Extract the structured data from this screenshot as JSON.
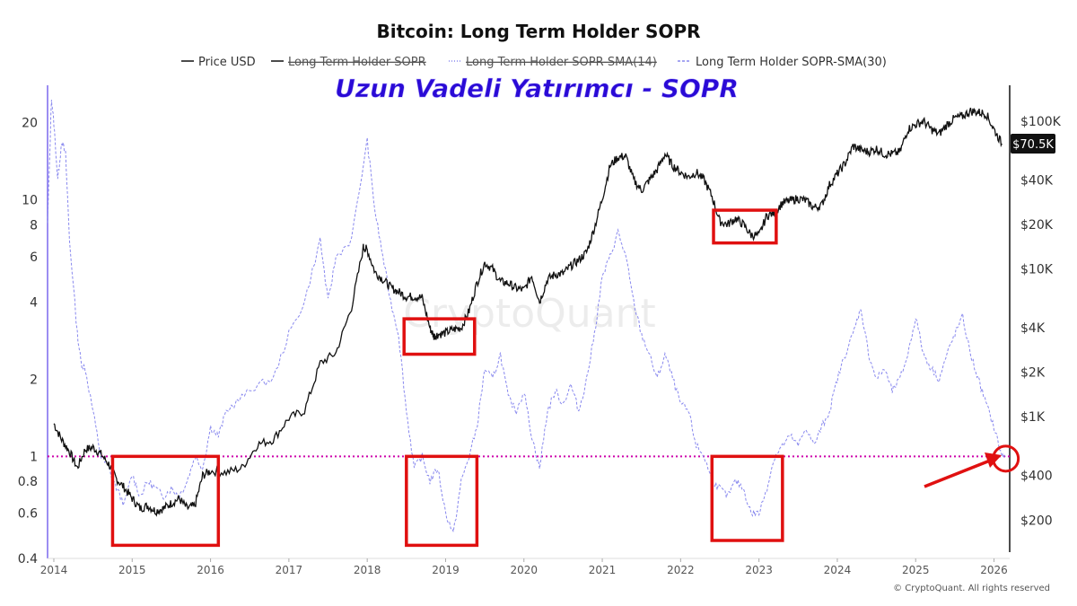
{
  "chart_data": {
    "type": "line",
    "title": "Bitcoin: Long Term Holder SOPR",
    "annotation": "Uzun Vadeli Yatırımcı - SOPR",
    "watermark": "CryptoQuant",
    "copyright": "© CryptoQuant. All rights reserved",
    "legend": [
      {
        "label": "Price USD",
        "style": "solid",
        "hidden": false
      },
      {
        "label": "Long Term Holder SOPR",
        "style": "solid",
        "hidden": true
      },
      {
        "label": "Long Term Holder SOPR-SMA(14)",
        "style": "dotted",
        "hidden": true
      },
      {
        "label": "Long Term Holder SOPR-SMA(30)",
        "style": "dashed",
        "hidden": false
      }
    ],
    "x_ticks": [
      "2014",
      "2015",
      "2016",
      "2017",
      "2018",
      "2019",
      "2020",
      "2021",
      "2022",
      "2023",
      "2024",
      "2025",
      "2026"
    ],
    "x_range": [
      2013.92,
      2026.2
    ],
    "left_axis": {
      "scale": "log",
      "range": [
        0.4,
        28
      ],
      "ticks": [
        0.4,
        0.6,
        0.8,
        1,
        2,
        4,
        6,
        8,
        10,
        20
      ],
      "labels": [
        "0.4",
        "0.6",
        "0.8",
        "1",
        "2",
        "4",
        "6",
        "8",
        "10",
        "20"
      ]
    },
    "right_axis": {
      "scale": "log",
      "range": [
        110,
        175000
      ],
      "ticks": [
        200,
        400,
        1000,
        2000,
        4000,
        10000,
        20000,
        40000,
        100000
      ],
      "labels": [
        "$200",
        "$400",
        "$1K",
        "$2K",
        "$4K",
        "$10K",
        "$20K",
        "$40K",
        "$100K"
      ]
    },
    "current_price_label": "$70.5K",
    "current_price": 70500,
    "reference_line": 1,
    "colors": {
      "price": "#111111",
      "sopr_sma30": "#8888ee",
      "reference": "#cc00aa",
      "highlight": "#e01010",
      "annotation": "#2a0ad6",
      "axis_left": "#7b68ee",
      "price_tag_bg": "#111111"
    },
    "series": [
      {
        "name": "Price USD",
        "axis": "right",
        "x": [
          2014.0,
          2014.1,
          2014.2,
          2014.3,
          2014.4,
          2014.5,
          2014.6,
          2014.7,
          2014.8,
          2014.9,
          2015.0,
          2015.1,
          2015.2,
          2015.3,
          2015.4,
          2015.5,
          2015.6,
          2015.7,
          2015.8,
          2015.9,
          2016.0,
          2016.2,
          2016.4,
          2016.6,
          2016.8,
          2017.0,
          2017.2,
          2017.4,
          2017.6,
          2017.8,
          2017.95,
          2018.0,
          2018.1,
          2018.2,
          2018.3,
          2018.4,
          2018.5,
          2018.6,
          2018.7,
          2018.8,
          2018.85,
          2018.9,
          2019.0,
          2019.1,
          2019.2,
          2019.3,
          2019.4,
          2019.5,
          2019.6,
          2019.7,
          2019.8,
          2019.9,
          2020.0,
          2020.1,
          2020.2,
          2020.3,
          2020.4,
          2020.5,
          2020.6,
          2020.7,
          2020.8,
          2020.9,
          2021.0,
          2021.1,
          2021.2,
          2021.3,
          2021.4,
          2021.5,
          2021.6,
          2021.7,
          2021.8,
          2021.9,
          2022.0,
          2022.1,
          2022.2,
          2022.3,
          2022.4,
          2022.5,
          2022.6,
          2022.7,
          2022.8,
          2022.9,
          2023.0,
          2023.1,
          2023.2,
          2023.3,
          2023.4,
          2023.5,
          2023.6,
          2023.7,
          2023.8,
          2023.9,
          2024.0,
          2024.1,
          2024.2,
          2024.3,
          2024.4,
          2024.5,
          2024.6,
          2024.7,
          2024.8,
          2024.9,
          2025.0,
          2025.1,
          2025.2,
          2025.3,
          2025.4,
          2025.5,
          2025.6,
          2025.7,
          2025.8,
          2025.9,
          2026.0,
          2026.1
        ],
        "values": [
          900,
          700,
          580,
          450,
          600,
          620,
          560,
          480,
          380,
          330,
          280,
          240,
          250,
          230,
          240,
          260,
          280,
          240,
          250,
          400,
          430,
          420,
          450,
          650,
          700,
          980,
          1100,
          2300,
          2700,
          5500,
          14000,
          13500,
          9500,
          8500,
          7500,
          7000,
          6500,
          6500,
          6400,
          4000,
          3500,
          3600,
          3700,
          3900,
          4000,
          5200,
          8000,
          11000,
          10000,
          8200,
          8000,
          7400,
          7200,
          9000,
          6000,
          8500,
          9200,
          9300,
          10500,
          11500,
          13000,
          19000,
          30000,
          50000,
          57000,
          58000,
          40000,
          34000,
          40000,
          47000,
          60000,
          50000,
          45000,
          42000,
          45000,
          40000,
          31000,
          21000,
          20000,
          22000,
          20000,
          17000,
          16800,
          23000,
          24000,
          28000,
          29000,
          30000,
          29000,
          26000,
          27000,
          37000,
          44000,
          52000,
          68000,
          64000,
          62000,
          65000,
          60000,
          60000,
          62000,
          88000,
          95000,
          100000,
          88000,
          82000,
          95000,
          105000,
          108000,
          117000,
          115000,
          112000,
          88000,
          70500
        ]
      },
      {
        "name": "Long Term Holder SOPR-SMA(30)",
        "axis": "left",
        "x": [
          2013.92,
          2013.97,
          2014.0,
          2014.05,
          2014.1,
          2014.15,
          2014.2,
          2014.3,
          2014.35,
          2014.4,
          2014.5,
          2014.6,
          2014.7,
          2014.8,
          2014.9,
          2015.0,
          2015.1,
          2015.2,
          2015.3,
          2015.4,
          2015.5,
          2015.6,
          2015.7,
          2015.8,
          2015.9,
          2016.0,
          2016.1,
          2016.2,
          2016.4,
          2016.6,
          2016.8,
          2017.0,
          2017.2,
          2017.4,
          2017.5,
          2017.6,
          2017.8,
          2018.0,
          2018.1,
          2018.2,
          2018.3,
          2018.4,
          2018.5,
          2018.6,
          2018.7,
          2018.8,
          2018.9,
          2019.0,
          2019.1,
          2019.2,
          2019.3,
          2019.4,
          2019.5,
          2019.6,
          2019.7,
          2019.8,
          2019.9,
          2020.0,
          2020.1,
          2020.2,
          2020.3,
          2020.4,
          2020.5,
          2020.6,
          2020.7,
          2020.8,
          2020.9,
          2021.0,
          2021.1,
          2021.2,
          2021.3,
          2021.4,
          2021.5,
          2021.6,
          2021.7,
          2021.8,
          2021.9,
          2022.0,
          2022.1,
          2022.2,
          2022.3,
          2022.4,
          2022.5,
          2022.6,
          2022.7,
          2022.8,
          2022.9,
          2023.0,
          2023.1,
          2023.2,
          2023.3,
          2023.4,
          2023.5,
          2023.6,
          2023.7,
          2023.8,
          2023.9,
          2024.0,
          2024.1,
          2024.2,
          2024.3,
          2024.4,
          2024.5,
          2024.6,
          2024.7,
          2024.8,
          2024.9,
          2025.0,
          2025.1,
          2025.2,
          2025.3,
          2025.4,
          2025.5,
          2025.6,
          2025.7,
          2025.8,
          2025.9,
          2026.0,
          2026.1,
          2026.15
        ],
        "values": [
          8,
          25,
          20,
          12,
          17,
          15,
          7,
          3,
          2.3,
          2.2,
          1.5,
          1.0,
          0.9,
          0.75,
          0.65,
          0.85,
          0.7,
          0.8,
          0.75,
          0.7,
          0.75,
          0.7,
          0.8,
          1.0,
          0.9,
          1.3,
          1.2,
          1.5,
          1.7,
          1.9,
          2.0,
          3,
          4,
          7,
          4,
          6,
          7,
          17,
          9,
          6,
          4,
          3,
          1.5,
          0.9,
          1.0,
          0.8,
          0.9,
          0.6,
          0.5,
          0.8,
          1.0,
          1.3,
          2.2,
          2.0,
          2.5,
          1.7,
          1.5,
          1.8,
          1.2,
          0.9,
          1.5,
          1.8,
          1.6,
          1.9,
          1.5,
          2.0,
          3,
          5,
          6,
          7.5,
          6,
          4,
          3,
          2.5,
          2.0,
          2.5,
          2.0,
          1.6,
          1.5,
          1.1,
          1.0,
          0.8,
          0.75,
          0.7,
          0.8,
          0.75,
          0.6,
          0.6,
          0.75,
          1.0,
          1.1,
          1.2,
          1.1,
          1.3,
          1.1,
          1.3,
          1.5,
          2,
          2.5,
          3,
          3.8,
          2.5,
          2.0,
          2.2,
          1.8,
          2,
          2.5,
          3.5,
          2.5,
          2.2,
          2.0,
          2.5,
          3.0,
          3.5,
          2.5,
          2.0,
          1.6,
          1.3,
          1.0,
          1.0
        ]
      }
    ],
    "highlight_boxes": [
      {
        "x0": 2014.75,
        "x1": 2016.1,
        "y0": 0.45,
        "y1": 1.0,
        "axis": "left"
      },
      {
        "x0": 2018.5,
        "x1": 2019.4,
        "y0": 0.45,
        "y1": 1.0,
        "axis": "left"
      },
      {
        "x0": 2022.4,
        "x1": 2023.3,
        "y0": 0.47,
        "y1": 1.0,
        "axis": "left"
      },
      {
        "x0": 2018.47,
        "x1": 2019.37,
        "y0": 2650,
        "y1": 4600,
        "axis": "right"
      },
      {
        "x0": 2022.42,
        "x1": 2023.22,
        "y0": 15000,
        "y1": 25000,
        "axis": "right"
      }
    ],
    "highlight_circle": {
      "x": 2026.15,
      "y": 0.98,
      "axis": "left"
    }
  }
}
